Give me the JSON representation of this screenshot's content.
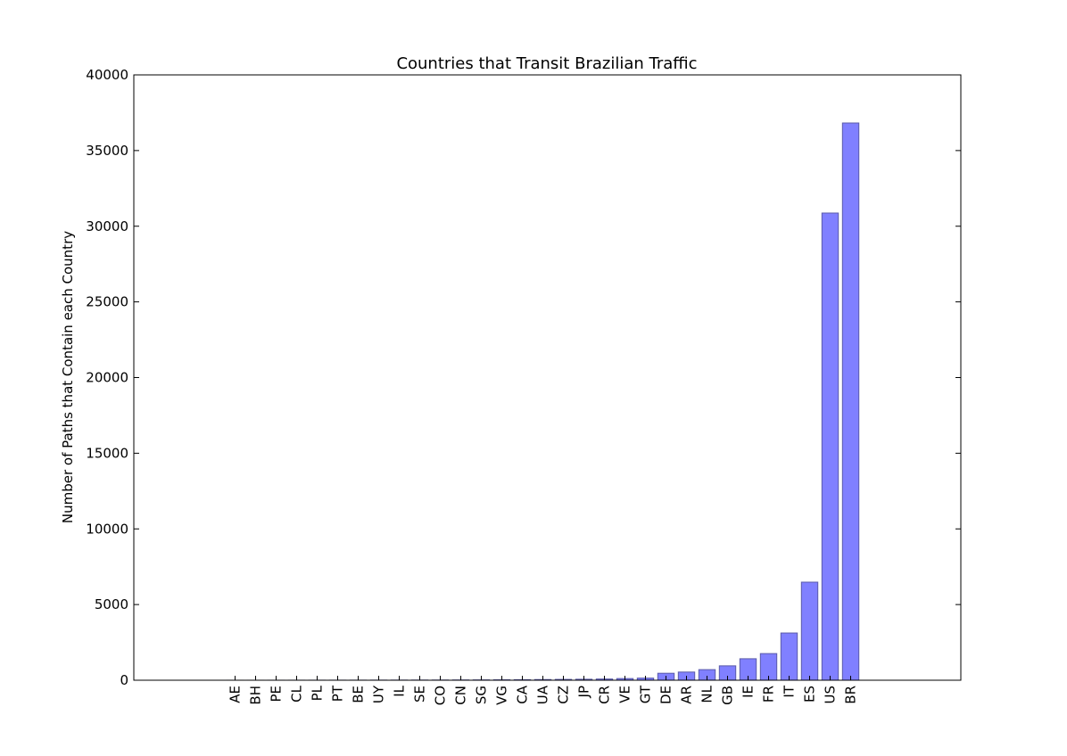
{
  "chart_data": {
    "type": "bar",
    "title": "Countries that Transit Brazilian Traffic",
    "xlabel": "",
    "ylabel": "Number of Paths that Contain each Country",
    "ylim": [
      0,
      40000
    ],
    "yticks": [
      0,
      5000,
      10000,
      15000,
      20000,
      25000,
      30000,
      35000,
      40000
    ],
    "grid": false,
    "colors": {
      "bar_fill": "#8080ff",
      "bar_edge": "#5a5aa8",
      "axis": "#000000"
    },
    "categories": [
      "AE",
      "BH",
      "PE",
      "CL",
      "PL",
      "PT",
      "BE",
      "UY",
      "IL",
      "SE",
      "CO",
      "CN",
      "SG",
      "VG",
      "CA",
      "UA",
      "CZ",
      "JP",
      "CR",
      "VE",
      "GT",
      "DE",
      "AR",
      "NL",
      "GB",
      "IE",
      "FR",
      "IT",
      "ES",
      "US",
      "BR"
    ],
    "values": [
      1,
      1,
      2,
      3,
      4,
      5,
      6,
      8,
      10,
      12,
      14,
      18,
      22,
      28,
      35,
      45,
      55,
      65,
      80,
      110,
      140,
      460,
      540,
      700,
      950,
      1420,
      1760,
      3120,
      6480,
      30870,
      36820
    ]
  }
}
